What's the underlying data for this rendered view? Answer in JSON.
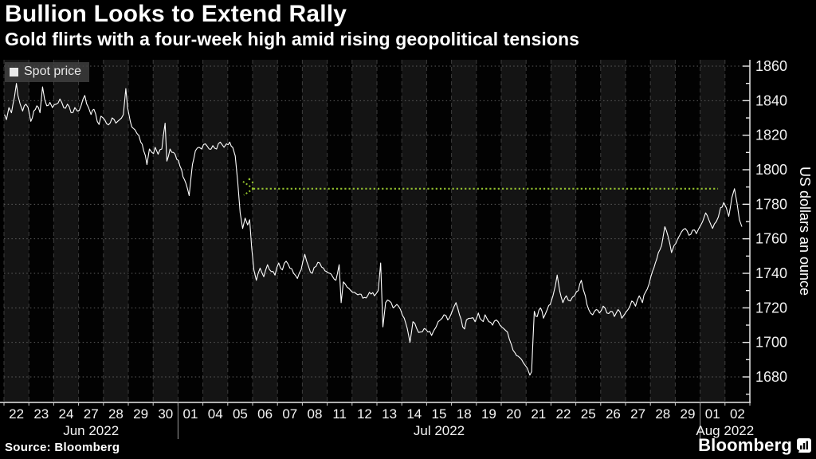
{
  "header": {
    "title": "Bullion Looks to Extend Rally",
    "subtitle": "Gold flirts with a four-week high amid rising geopolitical tensions"
  },
  "legend": {
    "label": "Spot price"
  },
  "footer": {
    "source": "Source: Bloomberg",
    "brand": "Bloomberg"
  },
  "colors": {
    "background": "#000000",
    "line": "#ffffff",
    "reference_green": "#94c22f",
    "band_light": "#141414",
    "grid_vertical": "#3d3d3d",
    "grid_horizontal": "#5c5c5c",
    "axis": "#e9e9e9",
    "month_separator": "#999999"
  },
  "chart_data": {
    "type": "line",
    "title": "Bullion Looks to Extend Rally",
    "subtitle": "Gold flirts with a four-week high amid rising geopolitical tensions",
    "ylabel": "US dollars an ounce",
    "ylim": [
      1665,
      1864
    ],
    "y_ticks": [
      1680,
      1700,
      1720,
      1740,
      1760,
      1780,
      1800,
      1820,
      1840,
      1860
    ],
    "y_minor_step": 10,
    "grid": true,
    "legend_position": "top-left",
    "x_axis": {
      "days": [
        "22",
        "23",
        "24",
        "27",
        "28",
        "29",
        "30",
        "01",
        "04",
        "05",
        "06",
        "07",
        "08",
        "11",
        "12",
        "13",
        "14",
        "15",
        "18",
        "19",
        "20",
        "21",
        "22",
        "25",
        "26",
        "27",
        "28",
        "29",
        "01",
        "02"
      ],
      "months": [
        {
          "label": "Jun 2022",
          "start": 0,
          "end": 7
        },
        {
          "label": "Jul 2022",
          "start": 7,
          "end": 28
        },
        {
          "label": "Aug 2022",
          "start": 28,
          "end": 30
        }
      ]
    },
    "series": [
      {
        "name": "Spot price",
        "color": "#ffffff",
        "points": [
          [
            0.02,
            1832
          ],
          [
            0.1,
            1829
          ],
          [
            0.2,
            1836
          ],
          [
            0.3,
            1833
          ],
          [
            0.42,
            1842
          ],
          [
            0.5,
            1850
          ],
          [
            0.56,
            1843
          ],
          [
            0.65,
            1838
          ],
          [
            0.75,
            1834
          ],
          [
            0.88,
            1838
          ],
          [
            0.97,
            1836
          ],
          [
            1.08,
            1828
          ],
          [
            1.2,
            1834
          ],
          [
            1.32,
            1837
          ],
          [
            1.45,
            1833
          ],
          [
            1.55,
            1848
          ],
          [
            1.63,
            1841
          ],
          [
            1.72,
            1837
          ],
          [
            1.85,
            1839
          ],
          [
            1.95,
            1836
          ],
          [
            2.1,
            1838
          ],
          [
            2.25,
            1841
          ],
          [
            2.4,
            1836
          ],
          [
            2.55,
            1838
          ],
          [
            2.7,
            1833
          ],
          [
            2.85,
            1836
          ],
          [
            2.95,
            1834
          ],
          [
            3.1,
            1837
          ],
          [
            3.25,
            1843
          ],
          [
            3.4,
            1836
          ],
          [
            3.5,
            1832
          ],
          [
            3.62,
            1835
          ],
          [
            3.75,
            1828
          ],
          [
            3.9,
            1831
          ],
          [
            4.05,
            1829
          ],
          [
            4.2,
            1826
          ],
          [
            4.35,
            1830
          ],
          [
            4.5,
            1827
          ],
          [
            4.65,
            1829
          ],
          [
            4.8,
            1832
          ],
          [
            4.9,
            1847
          ],
          [
            4.97,
            1836
          ],
          [
            5.08,
            1828
          ],
          [
            5.2,
            1824
          ],
          [
            5.35,
            1821
          ],
          [
            5.5,
            1816
          ],
          [
            5.62,
            1811
          ],
          [
            5.75,
            1803
          ],
          [
            5.85,
            1812
          ],
          [
            5.95,
            1810
          ],
          [
            6.08,
            1813
          ],
          [
            6.2,
            1809
          ],
          [
            6.35,
            1812
          ],
          [
            6.48,
            1827
          ],
          [
            6.55,
            1805
          ],
          [
            6.68,
            1812
          ],
          [
            6.82,
            1810
          ],
          [
            6.95,
            1806
          ],
          [
            7.08,
            1802
          ],
          [
            7.2,
            1796
          ],
          [
            7.32,
            1792
          ],
          [
            7.45,
            1785
          ],
          [
            7.58,
            1803
          ],
          [
            7.7,
            1811
          ],
          [
            7.85,
            1813
          ],
          [
            7.95,
            1812
          ],
          [
            8.1,
            1815
          ],
          [
            8.25,
            1812
          ],
          [
            8.4,
            1814
          ],
          [
            8.55,
            1812
          ],
          [
            8.7,
            1816
          ],
          [
            8.85,
            1813
          ],
          [
            8.95,
            1815
          ],
          [
            9.08,
            1816
          ],
          [
            9.2,
            1813
          ],
          [
            9.3,
            1808
          ],
          [
            9.4,
            1793
          ],
          [
            9.5,
            1775
          ],
          [
            9.6,
            1766
          ],
          [
            9.7,
            1772
          ],
          [
            9.8,
            1768
          ],
          [
            9.88,
            1771
          ],
          [
            9.96,
            1755
          ],
          [
            10.05,
            1742
          ],
          [
            10.15,
            1736
          ],
          [
            10.3,
            1743
          ],
          [
            10.45,
            1738
          ],
          [
            10.6,
            1745
          ],
          [
            10.75,
            1741
          ],
          [
            10.9,
            1739
          ],
          [
            11.05,
            1746
          ],
          [
            11.2,
            1742
          ],
          [
            11.35,
            1747
          ],
          [
            11.5,
            1743
          ],
          [
            11.65,
            1740
          ],
          [
            11.8,
            1737
          ],
          [
            11.95,
            1742
          ],
          [
            12.1,
            1751
          ],
          [
            12.25,
            1744
          ],
          [
            12.4,
            1740
          ],
          [
            12.55,
            1744
          ],
          [
            12.7,
            1746
          ],
          [
            12.85,
            1743
          ],
          [
            12.97,
            1741
          ],
          [
            13.1,
            1740
          ],
          [
            13.22,
            1738
          ],
          [
            13.35,
            1736
          ],
          [
            13.48,
            1745
          ],
          [
            13.56,
            1723
          ],
          [
            13.65,
            1735
          ],
          [
            13.8,
            1732
          ],
          [
            13.95,
            1730
          ],
          [
            14.1,
            1729
          ],
          [
            14.3,
            1728
          ],
          [
            14.5,
            1726
          ],
          [
            14.7,
            1729
          ],
          [
            14.9,
            1727
          ],
          [
            15.05,
            1730
          ],
          [
            15.15,
            1746
          ],
          [
            15.24,
            1709
          ],
          [
            15.35,
            1723
          ],
          [
            15.5,
            1724
          ],
          [
            15.65,
            1720
          ],
          [
            15.8,
            1722
          ],
          [
            15.95,
            1719
          ],
          [
            16.1,
            1714
          ],
          [
            16.22,
            1708
          ],
          [
            16.33,
            1700
          ],
          [
            16.45,
            1712
          ],
          [
            16.6,
            1708
          ],
          [
            16.75,
            1706
          ],
          [
            16.9,
            1708
          ],
          [
            17.05,
            1706
          ],
          [
            17.2,
            1704
          ],
          [
            17.38,
            1709
          ],
          [
            17.55,
            1713
          ],
          [
            17.7,
            1716
          ],
          [
            17.85,
            1713
          ],
          [
            17.97,
            1716
          ],
          [
            18.08,
            1720
          ],
          [
            18.18,
            1723
          ],
          [
            18.32,
            1716
          ],
          [
            18.45,
            1709
          ],
          [
            18.6,
            1713
          ],
          [
            18.78,
            1714
          ],
          [
            18.95,
            1712
          ],
          [
            19.08,
            1717
          ],
          [
            19.2,
            1713
          ],
          [
            19.35,
            1716
          ],
          [
            19.5,
            1712
          ],
          [
            19.65,
            1710
          ],
          [
            19.8,
            1713
          ],
          [
            19.95,
            1710
          ],
          [
            20.1,
            1708
          ],
          [
            20.25,
            1706
          ],
          [
            20.4,
            1699
          ],
          [
            20.55,
            1694
          ],
          [
            20.68,
            1692
          ],
          [
            20.82,
            1690
          ],
          [
            20.95,
            1687
          ],
          [
            21.05,
            1685
          ],
          [
            21.15,
            1681
          ],
          [
            21.22,
            1683
          ],
          [
            21.28,
            1702
          ],
          [
            21.33,
            1718
          ],
          [
            21.45,
            1715
          ],
          [
            21.58,
            1720
          ],
          [
            21.7,
            1714
          ],
          [
            21.85,
            1719
          ],
          [
            21.97,
            1722
          ],
          [
            22.08,
            1727
          ],
          [
            22.18,
            1733
          ],
          [
            22.25,
            1739
          ],
          [
            22.35,
            1730
          ],
          [
            22.48,
            1723
          ],
          [
            22.62,
            1727
          ],
          [
            22.78,
            1724
          ],
          [
            22.95,
            1727
          ],
          [
            23.1,
            1730
          ],
          [
            23.22,
            1736
          ],
          [
            23.38,
            1727
          ],
          [
            23.52,
            1719
          ],
          [
            23.68,
            1716
          ],
          [
            23.82,
            1719
          ],
          [
            23.95,
            1717
          ],
          [
            24.1,
            1721
          ],
          [
            24.25,
            1717
          ],
          [
            24.4,
            1718
          ],
          [
            24.55,
            1715
          ],
          [
            24.7,
            1719
          ],
          [
            24.85,
            1714
          ],
          [
            24.95,
            1716
          ],
          [
            25.1,
            1719
          ],
          [
            25.25,
            1724
          ],
          [
            25.4,
            1721
          ],
          [
            25.55,
            1727
          ],
          [
            25.68,
            1723
          ],
          [
            25.8,
            1729
          ],
          [
            25.95,
            1734
          ],
          [
            26.08,
            1741
          ],
          [
            26.2,
            1746
          ],
          [
            26.32,
            1752
          ],
          [
            26.45,
            1756
          ],
          [
            26.58,
            1767
          ],
          [
            26.7,
            1762
          ],
          [
            26.85,
            1752
          ],
          [
            26.95,
            1756
          ],
          [
            27.1,
            1760
          ],
          [
            27.25,
            1764
          ],
          [
            27.4,
            1766
          ],
          [
            27.55,
            1762
          ],
          [
            27.7,
            1765
          ],
          [
            27.85,
            1763
          ],
          [
            27.95,
            1766
          ],
          [
            28.1,
            1770
          ],
          [
            28.22,
            1775
          ],
          [
            28.35,
            1771
          ],
          [
            28.5,
            1766
          ],
          [
            28.65,
            1770
          ],
          [
            28.82,
            1778
          ],
          [
            28.95,
            1781
          ],
          [
            29.05,
            1778
          ],
          [
            29.15,
            1773
          ],
          [
            29.28,
            1784
          ],
          [
            29.38,
            1789
          ],
          [
            29.48,
            1781
          ],
          [
            29.58,
            1771
          ],
          [
            29.68,
            1767
          ]
        ]
      }
    ],
    "reference_line": {
      "value": 1789,
      "start_day": 10.03,
      "end_day": 28.72,
      "style": "dotted",
      "color": "#94c22f",
      "arrow_at_start": true
    }
  }
}
